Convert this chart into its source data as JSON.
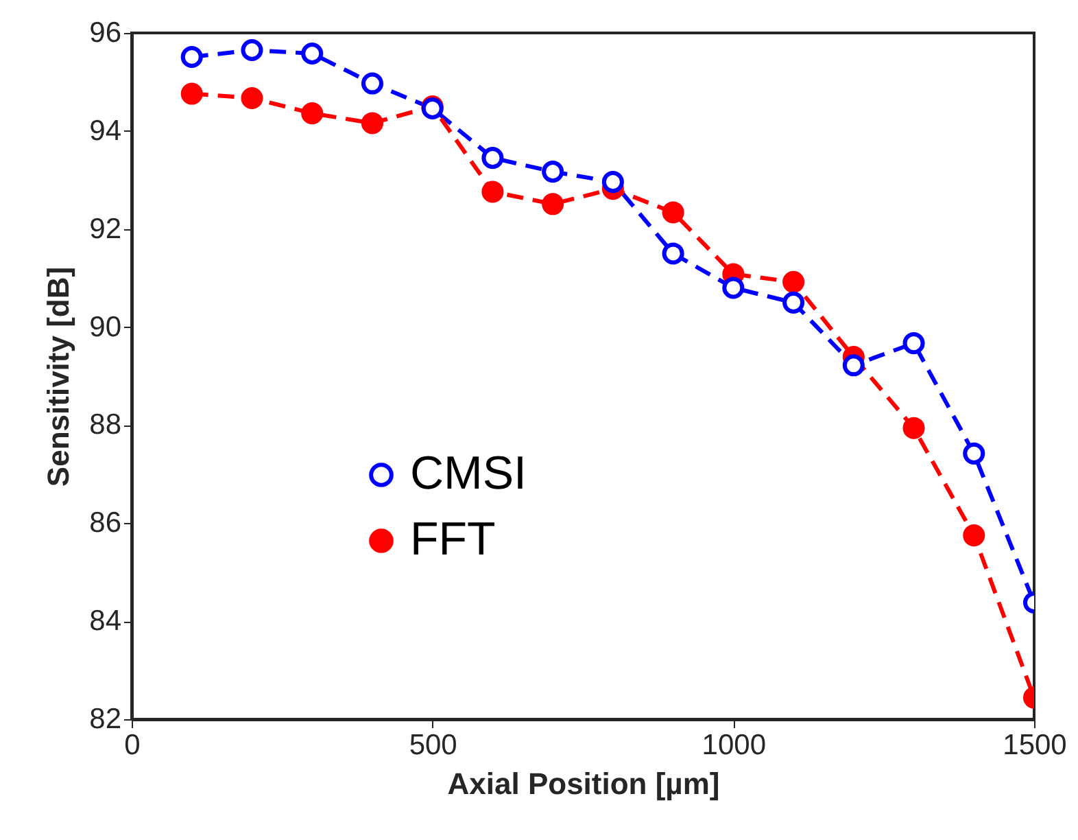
{
  "chart_data": {
    "type": "line",
    "xlabel": "Axial Position [µm]",
    "ylabel": "Sensitivity [dB]",
    "x": [
      100,
      200,
      300,
      400,
      500,
      600,
      700,
      800,
      900,
      1000,
      1100,
      1200,
      1300,
      1400,
      1500
    ],
    "xlim": [
      0,
      1500
    ],
    "xticks": [
      0,
      500,
      1000,
      1500
    ],
    "ylim": [
      82,
      96
    ],
    "yticks": [
      82,
      84,
      86,
      88,
      90,
      92,
      94,
      96
    ],
    "grid": false,
    "legend": "bottom left",
    "marker": "circle",
    "line_style": "dashed",
    "series": [
      {
        "name": "CMSI",
        "color": "#0000ff",
        "values": [
          95.51,
          95.65,
          95.58,
          94.97,
          94.46,
          93.45,
          93.17,
          92.96,
          91.5,
          90.8,
          90.5,
          89.22,
          89.67,
          87.42,
          84.38
        ]
      },
      {
        "name": "FFT",
        "color": "#ff0000",
        "values": [
          94.76,
          94.67,
          94.36,
          94.16,
          94.5,
          92.76,
          92.51,
          92.82,
          92.34,
          91.08,
          90.92,
          89.39,
          87.94,
          85.75,
          82.44
        ]
      }
    ]
  }
}
